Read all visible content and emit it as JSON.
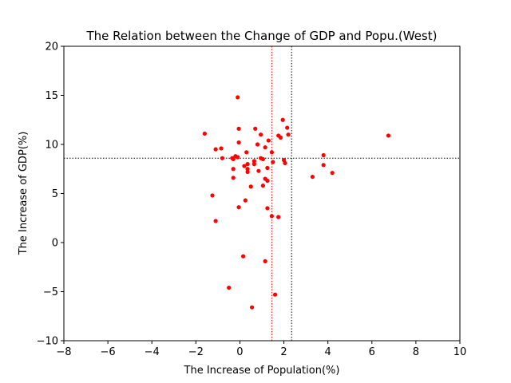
{
  "chart_data": {
    "type": "scatter",
    "title": "The Relation between the Change of GDP and Popu.(West)",
    "xlabel": "The Increase of Population(%)",
    "ylabel": "The Increase of GDP(%)",
    "xlim": [
      -8,
      10
    ],
    "ylim": [
      -10,
      20
    ],
    "xticks": [
      -8,
      -6,
      -4,
      -2,
      0,
      2,
      4,
      6,
      8,
      10
    ],
    "yticks": [
      -10,
      -5,
      0,
      5,
      10,
      15,
      20
    ],
    "xtick_labels": [
      "−8",
      "−6",
      "−4",
      "−2",
      "0",
      "2",
      "4",
      "6",
      "8",
      "10"
    ],
    "ytick_labels": [
      "−10",
      "−5",
      "0",
      "5",
      "10",
      "15",
      "20"
    ],
    "grid": false,
    "point_color": "#ff0000",
    "reference_lines": [
      {
        "orientation": "vertical",
        "value": 2.35,
        "color": "#000000",
        "style": "dotted"
      },
      {
        "orientation": "horizontal",
        "value": 8.6,
        "color": "#000000",
        "style": "dotted"
      },
      {
        "orientation": "vertical",
        "value": 1.45,
        "color": "#ff0000",
        "style": "dotted"
      }
    ],
    "points": [
      {
        "x": -0.1,
        "y": 14.8
      },
      {
        "x": -1.6,
        "y": 11.1
      },
      {
        "x": -0.05,
        "y": 11.6
      },
      {
        "x": 0.7,
        "y": 11.6
      },
      {
        "x": 1.95,
        "y": 12.5
      },
      {
        "x": 2.15,
        "y": 11.7
      },
      {
        "x": 2.2,
        "y": 11.0
      },
      {
        "x": 0.95,
        "y": 11.0
      },
      {
        "x": 1.75,
        "y": 10.9
      },
      {
        "x": 1.85,
        "y": 10.7
      },
      {
        "x": 1.3,
        "y": 10.4
      },
      {
        "x": -0.05,
        "y": 10.2
      },
      {
        "x": 0.8,
        "y": 10.0
      },
      {
        "x": 1.15,
        "y": 9.7
      },
      {
        "x": -1.1,
        "y": 9.5
      },
      {
        "x": -0.85,
        "y": 9.6
      },
      {
        "x": 0.3,
        "y": 9.2
      },
      {
        "x": 1.45,
        "y": 9.2
      },
      {
        "x": -0.2,
        "y": 8.8
      },
      {
        "x": -0.1,
        "y": 8.7
      },
      {
        "x": -0.35,
        "y": 8.6
      },
      {
        "x": -0.3,
        "y": 8.5
      },
      {
        "x": -0.8,
        "y": 8.6
      },
      {
        "x": 0.95,
        "y": 8.6
      },
      {
        "x": 1.05,
        "y": 8.5
      },
      {
        "x": 2.0,
        "y": 8.4
      },
      {
        "x": 2.05,
        "y": 8.1
      },
      {
        "x": 0.65,
        "y": 8.3
      },
      {
        "x": 0.65,
        "y": 8.0
      },
      {
        "x": 1.5,
        "y": 8.2
      },
      {
        "x": 0.35,
        "y": 8.0
      },
      {
        "x": 0.2,
        "y": 7.8
      },
      {
        "x": -0.3,
        "y": 7.5
      },
      {
        "x": 1.25,
        "y": 7.6
      },
      {
        "x": 0.35,
        "y": 7.5
      },
      {
        "x": 0.35,
        "y": 7.2
      },
      {
        "x": 0.85,
        "y": 7.3
      },
      {
        "x": -0.3,
        "y": 6.6
      },
      {
        "x": 1.15,
        "y": 6.5
      },
      {
        "x": 1.25,
        "y": 6.3
      },
      {
        "x": 0.5,
        "y": 5.7
      },
      {
        "x": 1.05,
        "y": 5.8
      },
      {
        "x": -1.25,
        "y": 4.8
      },
      {
        "x": 0.25,
        "y": 4.3
      },
      {
        "x": -0.05,
        "y": 3.6
      },
      {
        "x": 1.25,
        "y": 3.5
      },
      {
        "x": 1.45,
        "y": 2.7
      },
      {
        "x": 1.75,
        "y": 2.6
      },
      {
        "x": -1.1,
        "y": 2.2
      },
      {
        "x": 3.8,
        "y": 8.9
      },
      {
        "x": 3.8,
        "y": 7.9
      },
      {
        "x": 4.2,
        "y": 7.1
      },
      {
        "x": 3.3,
        "y": 6.7
      },
      {
        "x": 6.75,
        "y": 10.9
      },
      {
        "x": 0.15,
        "y": -1.4
      },
      {
        "x": 1.15,
        "y": -1.9
      },
      {
        "x": -0.5,
        "y": -4.6
      },
      {
        "x": 1.6,
        "y": -5.3
      },
      {
        "x": 0.55,
        "y": -6.6
      }
    ]
  }
}
